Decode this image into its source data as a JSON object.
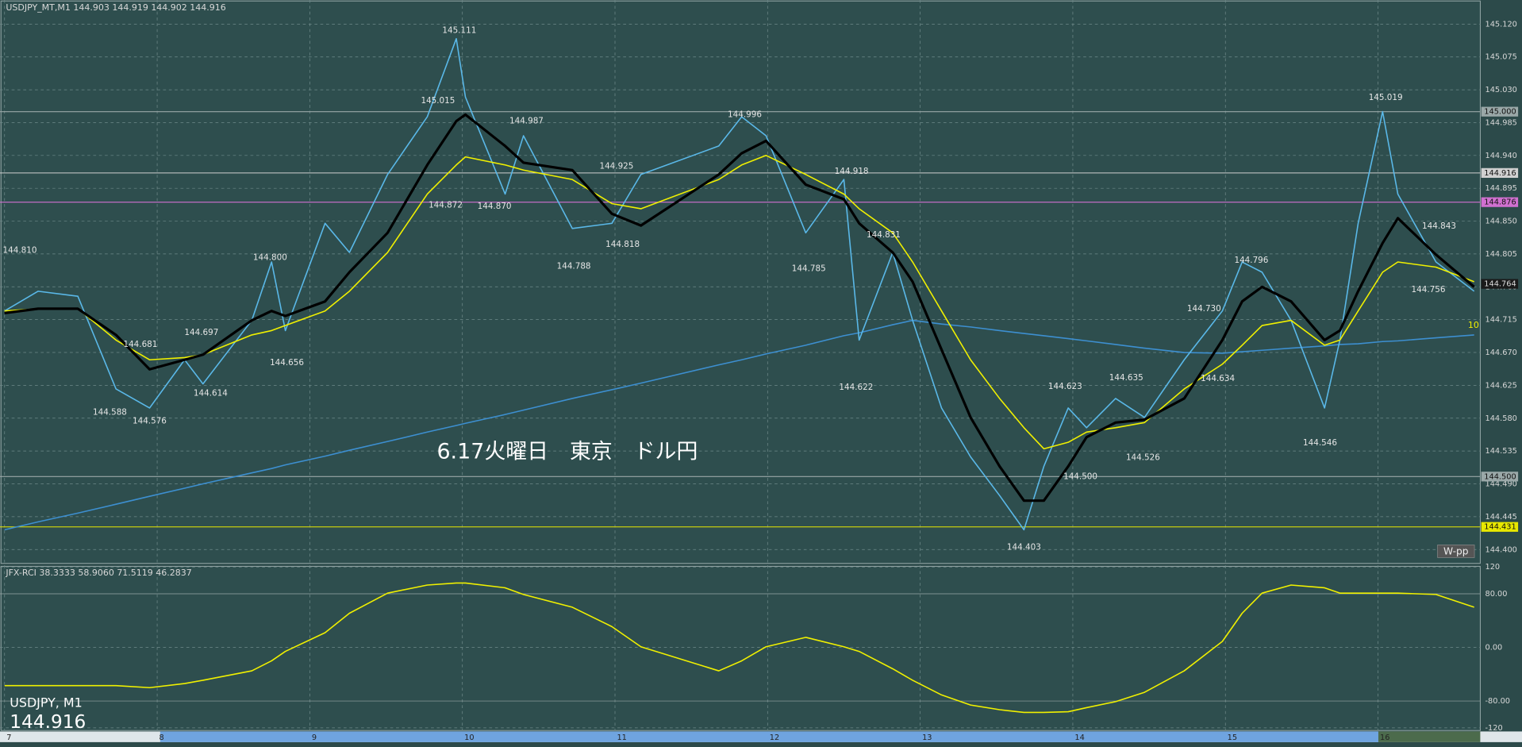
{
  "chart_data": [
    {
      "type": "line",
      "title": "USDJPY_MT,M1  144.903 144.919 144.902 144.916",
      "annotation": "6.17火曜日　東京　ドル円",
      "symbol_label": "USDJPY, M1",
      "price_label": "144.916",
      "pivot_label": "W-pp",
      "period_label": "10",
      "xlim": [
        6.97,
        16.67
      ],
      "ylim": [
        144.381,
        145.153
      ],
      "xticks": [
        7,
        8,
        9,
        10,
        11,
        12,
        13,
        14,
        15,
        16
      ],
      "yticks": [
        {
          "value": 145.12,
          "label": "145.120"
        },
        145.075,
        {
          "value": 145.03,
          "label": "145.030"
        },
        144.985,
        {
          "value": 144.94,
          "label": "144.940"
        },
        144.895,
        {
          "value": 144.85,
          "label": "144.850"
        },
        144.805,
        {
          "value": 144.76,
          "label": "144.760"
        },
        144.715,
        {
          "value": 144.67,
          "label": "144.670"
        },
        144.625,
        {
          "value": 144.58,
          "label": "144.580"
        },
        144.535,
        {
          "value": 144.49,
          "label": "144.490"
        },
        144.445,
        {
          "value": 144.4,
          "label": "144.400"
        }
      ],
      "grid": true,
      "x": [
        7.0,
        7.22,
        7.48,
        7.73,
        7.95,
        8.18,
        8.3,
        8.62,
        8.75,
        8.84,
        9.1,
        9.26,
        9.51,
        9.77,
        9.96,
        10.02,
        10.28,
        10.4,
        10.72,
        10.98,
        11.17,
        11.68,
        11.83,
        11.99,
        12.25,
        12.5,
        12.6,
        12.82,
        12.95,
        13.14,
        13.33,
        13.52,
        13.68,
        13.81,
        13.97,
        14.09,
        14.28,
        14.47,
        14.73,
        14.98,
        15.11,
        15.24,
        15.43,
        15.65,
        15.75,
        15.87,
        16.03,
        16.13,
        16.38,
        16.63
      ],
      "series": [
        {
          "color": "#3d8fd0",
          "values": [
            144.427,
            144.438,
            144.45,
            144.462,
            144.473,
            144.484,
            144.49,
            144.505,
            144.511,
            144.516,
            144.528,
            144.536,
            144.548,
            144.561,
            144.57,
            144.573,
            144.585,
            144.591,
            144.607,
            144.619,
            144.628,
            144.653,
            144.66,
            144.668,
            144.68,
            144.693,
            144.697,
            144.708,
            144.714,
            144.709,
            144.705,
            144.7,
            144.696,
            144.693,
            144.689,
            144.686,
            144.681,
            144.676,
            144.67,
            144.669,
            144.671,
            144.673,
            144.676,
            144.679,
            144.681,
            144.682,
            144.685,
            144.686,
            144.69,
            144.694
          ]
        },
        {
          "color": "#5ab8e8",
          "values": [
            144.727,
            144.754,
            144.747,
            144.62,
            144.594,
            144.66,
            144.627,
            144.714,
            144.794,
            144.7,
            144.847,
            144.807,
            144.914,
            144.993,
            145.1,
            145.02,
            144.887,
            144.967,
            144.84,
            144.847,
            144.914,
            144.953,
            144.993,
            144.967,
            144.834,
            144.907,
            144.687,
            144.807,
            144.714,
            144.594,
            144.527,
            144.474,
            144.427,
            144.514,
            144.594,
            144.567,
            144.607,
            144.581,
            144.66,
            144.727,
            144.794,
            144.78,
            144.714,
            144.594,
            144.687,
            144.847,
            145.0,
            144.887,
            144.794,
            144.754
          ]
        },
        {
          "color": "#f0f000",
          "values": [
            144.727,
            144.73,
            144.73,
            144.687,
            144.66,
            144.663,
            144.667,
            144.694,
            144.7,
            144.707,
            144.727,
            144.754,
            144.807,
            144.887,
            144.927,
            144.938,
            144.927,
            144.92,
            144.907,
            144.874,
            144.867,
            144.907,
            144.927,
            144.94,
            144.914,
            144.887,
            144.867,
            144.834,
            144.794,
            144.727,
            144.66,
            144.607,
            144.567,
            144.538,
            144.547,
            144.561,
            144.567,
            144.574,
            144.62,
            144.654,
            144.68,
            144.707,
            144.714,
            144.68,
            144.687,
            144.727,
            144.78,
            144.794,
            144.787,
            144.767
          ]
        },
        {
          "color": "#000000",
          "values": [
            144.724,
            144.73,
            144.73,
            144.694,
            144.647,
            144.66,
            144.667,
            144.714,
            144.727,
            144.72,
            144.74,
            144.78,
            144.834,
            144.927,
            144.987,
            144.996,
            144.953,
            144.93,
            144.92,
            144.86,
            144.844,
            144.914,
            144.943,
            144.96,
            144.9,
            144.88,
            144.847,
            144.807,
            144.767,
            144.674,
            144.581,
            144.514,
            144.467,
            144.467,
            144.514,
            144.554,
            144.574,
            144.578,
            144.607,
            144.687,
            144.74,
            144.76,
            144.74,
            144.687,
            144.7,
            144.754,
            144.82,
            144.854,
            144.804,
            144.76
          ]
        }
      ],
      "peaks": {
        "x": [
          7.1,
          7.69,
          7.95,
          7.89,
          8.29,
          8.35,
          8.74,
          8.85,
          9.98,
          9.84,
          9.89,
          10.21,
          10.42,
          11.01,
          11.05,
          10.73,
          11.85,
          12.55,
          12.76,
          12.27,
          12.58,
          13.95,
          14.05,
          13.68,
          14.35,
          14.46,
          14.86,
          14.95,
          15.17,
          15.62,
          16.05,
          16.4,
          16.33
        ],
        "values": [
          144.81,
          144.588,
          144.576,
          144.681,
          144.697,
          144.614,
          144.8,
          144.656,
          145.111,
          145.015,
          144.872,
          144.87,
          144.987,
          144.925,
          144.818,
          144.788,
          144.996,
          144.918,
          144.831,
          144.785,
          144.622,
          144.623,
          144.5,
          144.403,
          144.635,
          144.526,
          144.73,
          144.634,
          144.796,
          144.546,
          145.019,
          144.843,
          144.756
        ],
        "value_labels": [
          "144.810",
          "144.588",
          "144.576",
          "144.681",
          "144.697",
          "144.614",
          "144.800",
          "144.656",
          "145.111",
          "145.015",
          "144.872",
          "144.870",
          "144.987",
          "144.925",
          "144.818",
          "144.788",
          "144.996",
          "144.918",
          "144.831",
          "144.785",
          "144.622",
          "144.623",
          "144.500",
          "144.403",
          "144.635",
          "144.526",
          "144.730",
          "144.634",
          "144.796",
          "144.546",
          "145.019",
          "144.843",
          "144.756"
        ]
      },
      "hlines": {
        "values": [
          145.0,
          144.916,
          144.876,
          144.5,
          144.431
        ],
        "value_labels": [
          "145.000",
          "144.916",
          "144.876",
          "144.500",
          "144.431"
        ],
        "colors": [
          "#9aa8a8",
          "#d0d0d0",
          "#d070d0",
          "#9aa8a8",
          "#e8e800"
        ]
      },
      "price_marker": {
        "value": 144.764,
        "label": "144.764",
        "color": "#1a1a1a"
      }
    },
    {
      "type": "line",
      "title": "JFX-RCI 38.3333 58.9060 71.5119 46.2837",
      "ylim": [
        -124,
        121
      ],
      "yticks": [
        120,
        {
          "value": 80,
          "label": "80.00"
        },
        {
          "value": 0,
          "label": "0.00"
        },
        {
          "value": -80,
          "label": "-80.00"
        },
        -120
      ],
      "x": [
        7.0,
        7.22,
        7.48,
        7.73,
        7.95,
        8.18,
        8.3,
        8.62,
        8.75,
        8.84,
        9.1,
        9.26,
        9.51,
        9.77,
        9.96,
        10.02,
        10.28,
        10.4,
        10.72,
        10.98,
        11.17,
        11.68,
        11.83,
        11.99,
        12.25,
        12.5,
        12.6,
        12.82,
        12.95,
        13.14,
        13.33,
        13.52,
        13.68,
        13.81,
        13.97,
        14.09,
        14.28,
        14.47,
        14.73,
        14.98,
        15.11,
        15.24,
        15.43,
        15.65,
        15.75,
        15.87,
        16.03,
        16.13,
        16.38,
        16.63
      ],
      "series": [
        {
          "color": "#f0f000",
          "values": [
            -57,
            -57,
            -57,
            -57,
            -60,
            -54,
            -49,
            -35,
            -20,
            -6,
            22,
            51,
            81,
            93,
            96,
            96,
            89,
            79,
            60,
            31,
            1,
            -35,
            -20,
            1,
            15,
            1,
            -6,
            -32,
            -49,
            -71,
            -86,
            -93,
            -97,
            -97,
            -96,
            -90,
            -81,
            -67,
            -35,
            9,
            51,
            81,
            93,
            89,
            81,
            81,
            81,
            81,
            79,
            60
          ]
        }
      ]
    }
  ]
}
